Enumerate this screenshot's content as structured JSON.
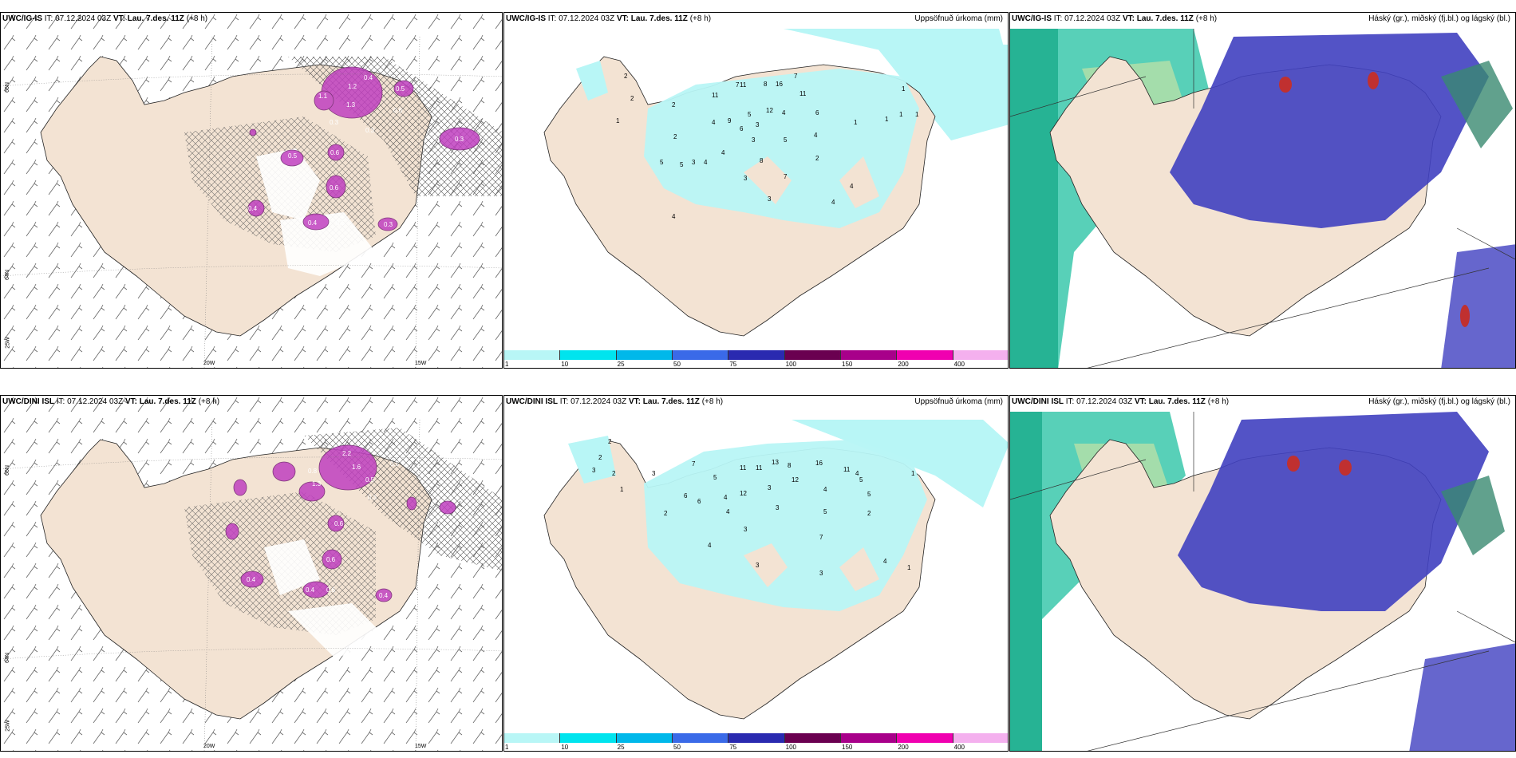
{
  "panels": [
    {
      "id": "r1c1",
      "source": "UWC/IG-IS",
      "it": "IT: 07.12.2024 03Z",
      "vt_label": "VT:",
      "vt": "Lau. 7.des. 11Z",
      "lead": "(+8 h)",
      "right": ""
    },
    {
      "id": "r1c2",
      "source": "UWC/IG-IS",
      "it": "IT: 07.12.2024 03Z",
      "vt_label": "VT:",
      "vt": "Lau. 7.des. 11Z",
      "lead": "(+8 h)",
      "right": "Uppsöfnuð úrkoma (mm)"
    },
    {
      "id": "r1c3",
      "source": "UWC/IG-IS",
      "it": "IT: 07.12.2024 03Z",
      "vt_label": "VT:",
      "vt": "Lau. 7.des. 11Z",
      "lead": "(+8 h)",
      "right": "Háský (gr.), miðský (fj.bl.) og lágský (bl.)"
    },
    {
      "id": "r2c1",
      "source": "UWC/DINI ISL",
      "it": "IT: 07.12.2024 03Z",
      "vt_label": "VT:",
      "vt": "Lau. 7.des. 11Z",
      "lead": "(+8 h)",
      "right": ""
    },
    {
      "id": "r2c2",
      "source": "UWC/DINI ISL",
      "it": "IT: 07.12.2024 03Z",
      "vt_label": "VT:",
      "vt": "Lau. 7.des. 11Z",
      "lead": "(+8 h)",
      "right": "Uppsöfnuð úrkoma (mm)"
    },
    {
      "id": "r2c3",
      "source": "UWC/DINI ISL",
      "it": "IT: 07.12.2024 03Z",
      "vt_label": "VT:",
      "vt": "Lau. 7.des. 11Z",
      "lead": "(+8 h)",
      "right": "Háský (gr.), miðský (fj.bl.) og lágský (bl.)"
    }
  ],
  "grid_labels": {
    "lon_20": "20W",
    "lon_15": "15W",
    "lat_66": "66N",
    "lat_64": "64N",
    "lon_25": "25W"
  },
  "colorbar": {
    "ticks": [
      "1",
      "10",
      "25",
      "50",
      "75",
      "100",
      "150",
      "200",
      "400"
    ],
    "colors": [
      "#b8f6f6",
      "#00e4ee",
      "#00b8ea",
      "#3a6ae8",
      "#2a2ab0",
      "#6a0050",
      "#a8008a",
      "#f000b0",
      "#f4b0ee"
    ]
  },
  "colors": {
    "land": "#f3e3d3",
    "precip_light": "#b8f6f6",
    "snow": "#c040c0",
    "high_cloud": "#3a8a70",
    "mid_cloud": "#20c0a0",
    "low_cloud": "#4040c0"
  },
  "precip_numbers_r1": [
    "2",
    "2",
    "1",
    "2",
    "11",
    "7",
    "11",
    "8",
    "16",
    "7",
    "11",
    "4",
    "9",
    "6",
    "5",
    "3",
    "12",
    "4",
    "6",
    "3",
    "5",
    "4",
    "1",
    "2",
    "5",
    "5",
    "3",
    "5",
    "4",
    "8",
    "3",
    "7",
    "2",
    "4",
    "4",
    "3",
    "4",
    "1",
    "1",
    "1",
    "1"
  ],
  "precip_numbers_r2": [
    "2",
    "3",
    "1",
    "2",
    "2",
    "3",
    "11",
    "11",
    "7",
    "13",
    "8",
    "16",
    "5",
    "11",
    "6",
    "5",
    "12",
    "4",
    "12",
    "3",
    "4",
    "6",
    "5",
    "3",
    "5",
    "2",
    "4",
    "3",
    "7",
    "4",
    "4",
    "3",
    "3",
    "4",
    "2",
    "1",
    "1"
  ],
  "snow_values_r1": [
    "0.4",
    "1.2",
    "1.1",
    "1.3",
    "0.3",
    "0.5",
    "0.6",
    "0.5",
    "0.6",
    "0.3",
    "0.5",
    "0.6",
    "0.4",
    "0.4",
    "0.5",
    "0.3"
  ],
  "snow_values_r2": [
    "2.2",
    "1.6",
    "0.8",
    "1.3",
    "0.5",
    "0.3",
    "0.6",
    "0.5",
    "0.4",
    "0.6",
    "0.4",
    "0.5",
    "0.4"
  ]
}
